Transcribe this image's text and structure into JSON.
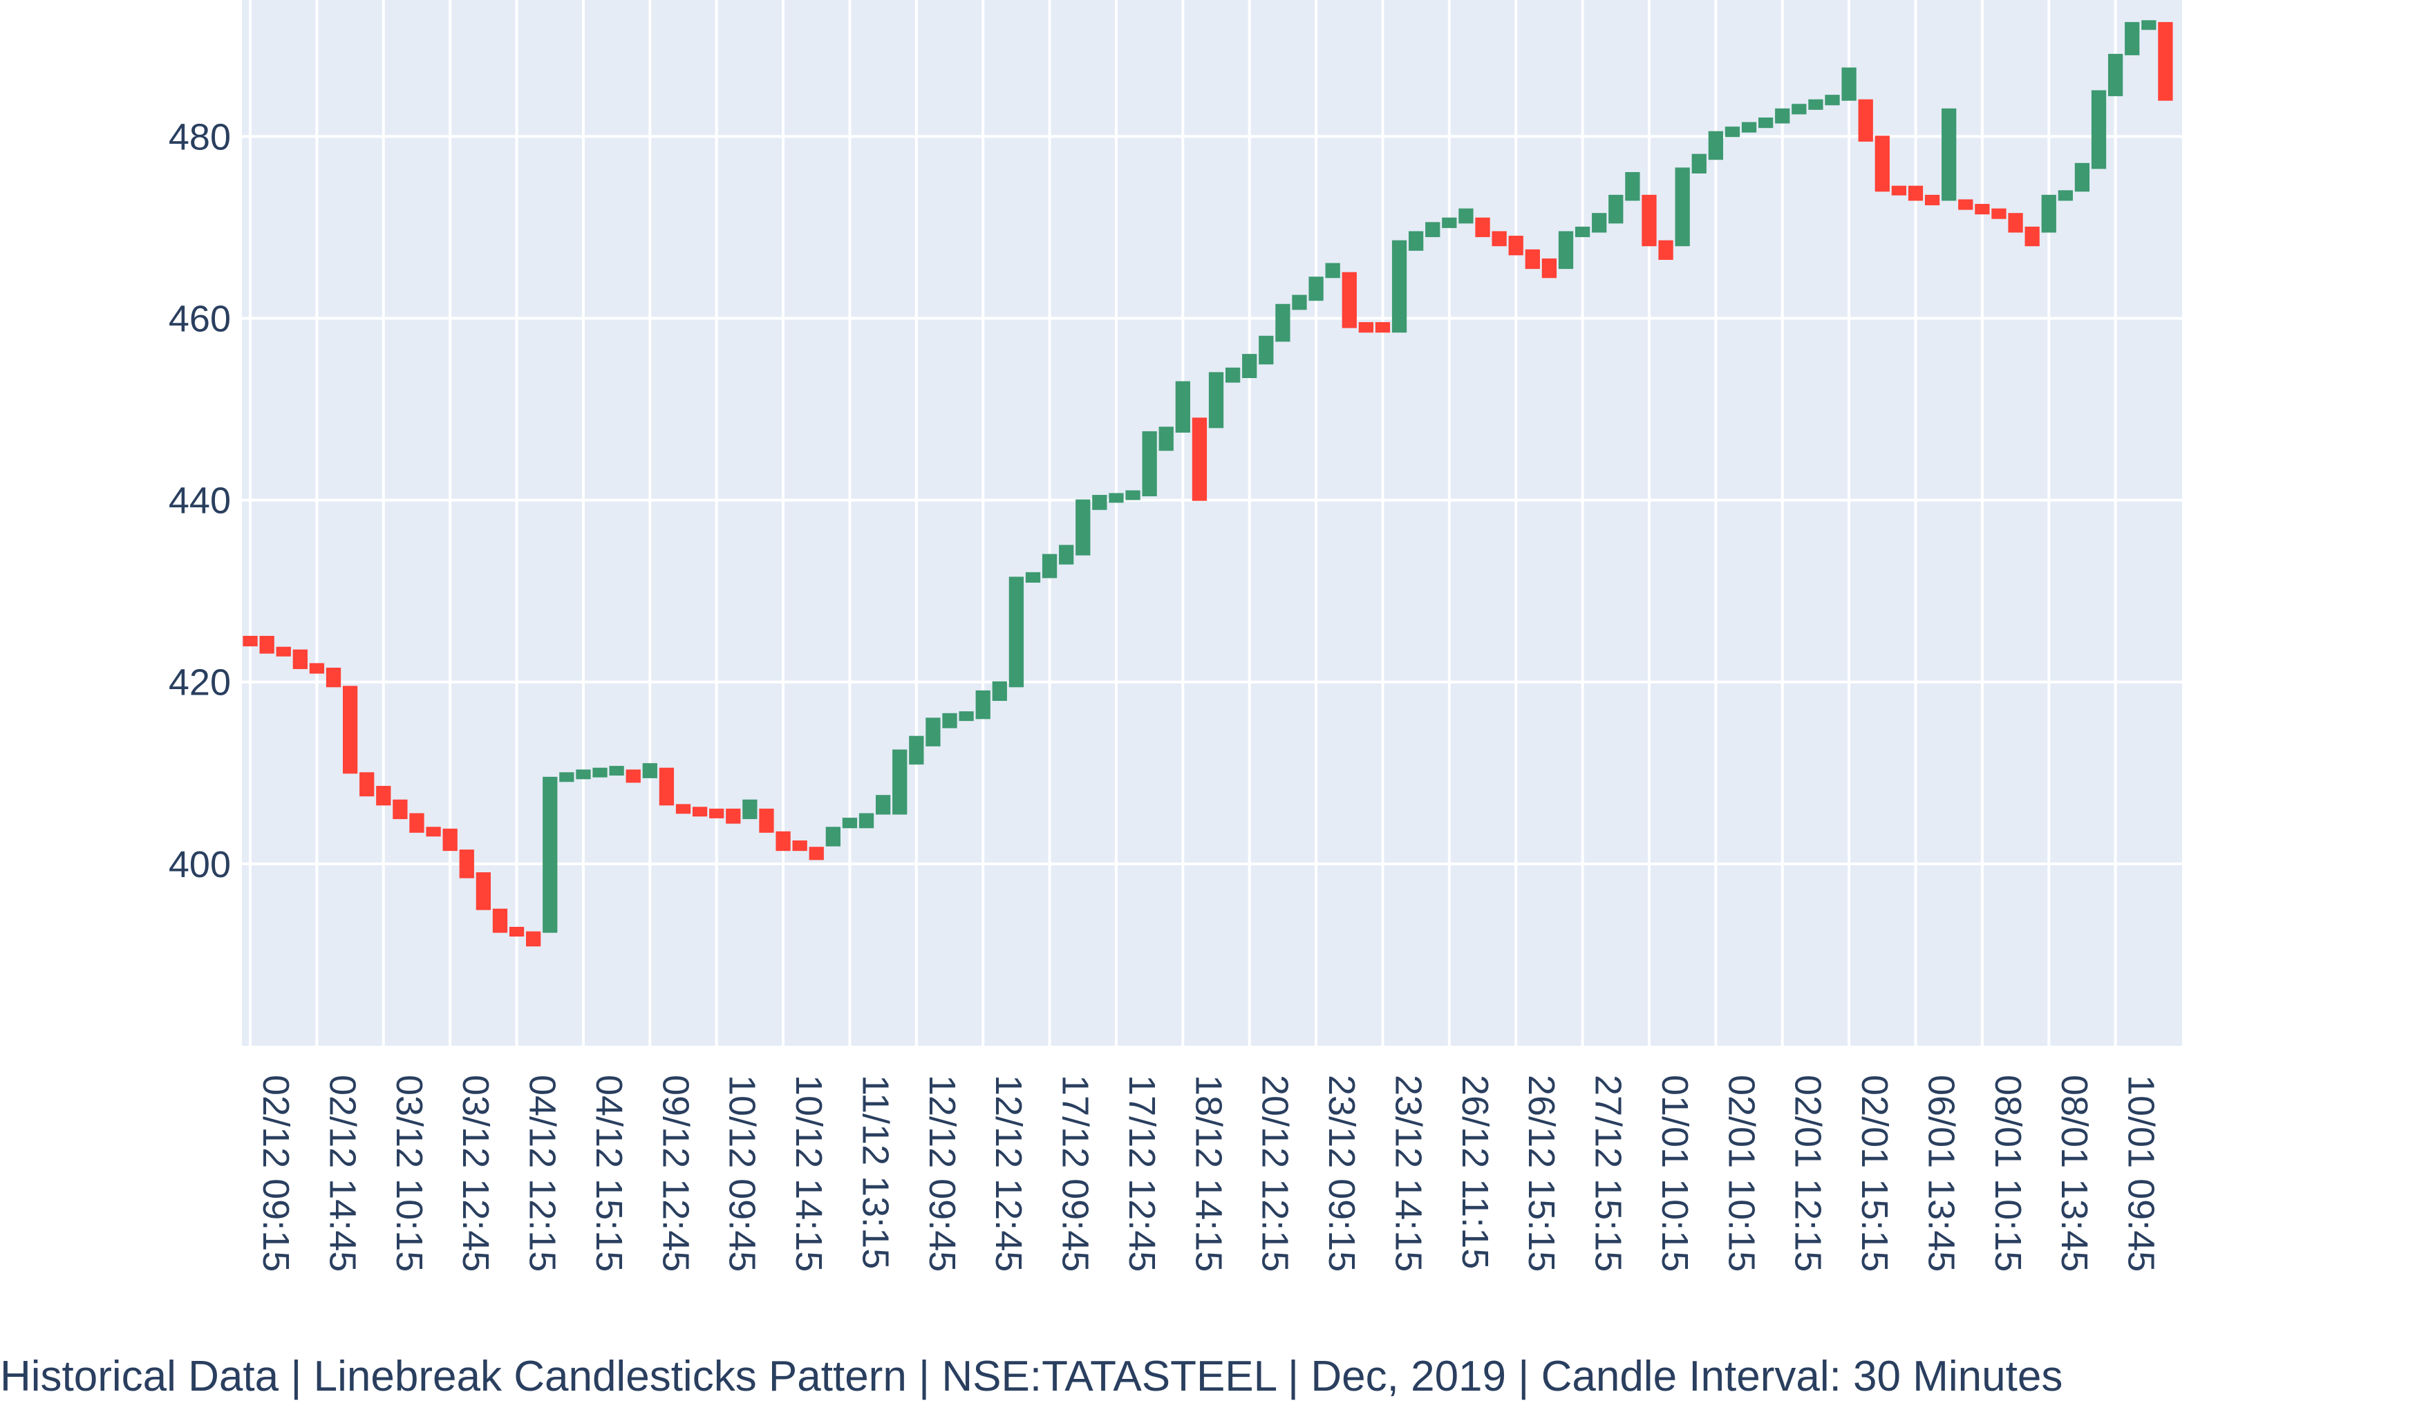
{
  "chart_data": {
    "type": "candlestick",
    "caption": "Historical Data | Linebreak Candlesticks Pattern | NSE:TATASTEEL | Dec, 2019 | Candle Interval: 30 Minutes",
    "ylim": [
      380,
      495
    ],
    "y_ticks": [
      400,
      420,
      440,
      460,
      480
    ],
    "x_tick_labels": [
      "02/12 09:15",
      "02/12 14:45",
      "03/12 10:15",
      "03/12 12:45",
      "04/12 12:15",
      "04/12 15:15",
      "09/12 12:45",
      "10/12 09:45",
      "10/12 14:15",
      "11/12 13:15",
      "12/12 09:45",
      "12/12 12:45",
      "17/12 09:45",
      "17/12 12:45",
      "18/12 14:15",
      "20/12 12:15",
      "23/12 09:15",
      "23/12 14:15",
      "26/12 11:15",
      "26/12 15:15",
      "27/12 15:15",
      "01/01 10:15",
      "02/01 10:15",
      "02/01 12:15",
      "02/01 15:15",
      "06/01 13:45",
      "08/01 10:15",
      "08/01 13:45",
      "10/01 09:45"
    ],
    "grid": true,
    "colors": {
      "up": "#3d9970",
      "down": "#ff4136",
      "plot_bg": "#e5ecf6",
      "grid": "#ffffff",
      "text": "#2a3f5f"
    },
    "candles": [
      {
        "o": 425.0,
        "c": 424.0
      },
      {
        "o": 425.0,
        "c": 423.2
      },
      {
        "o": 423.8,
        "c": 423.0
      },
      {
        "o": 423.5,
        "c": 421.5
      },
      {
        "o": 422.0,
        "c": 421.0
      },
      {
        "o": 421.5,
        "c": 419.5
      },
      {
        "o": 419.5,
        "c": 410.0
      },
      {
        "o": 410.0,
        "c": 407.5
      },
      {
        "o": 408.5,
        "c": 406.5
      },
      {
        "o": 407.0,
        "c": 405.0
      },
      {
        "o": 405.5,
        "c": 403.5
      },
      {
        "o": 404.0,
        "c": 403.5
      },
      {
        "o": 403.8,
        "c": 401.5
      },
      {
        "o": 401.5,
        "c": 398.5
      },
      {
        "o": 399.0,
        "c": 395.0
      },
      {
        "o": 395.0,
        "c": 392.5
      },
      {
        "o": 393.0,
        "c": 392.5
      },
      {
        "o": 392.5,
        "c": 391.0
      },
      {
        "o": 392.5,
        "c": 409.5
      },
      {
        "o": 409.5,
        "c": 410.0
      },
      {
        "o": 410.0,
        "c": 410.3
      },
      {
        "o": 410.2,
        "c": 410.5
      },
      {
        "o": 410.5,
        "c": 410.7
      },
      {
        "o": 410.3,
        "c": 409.0
      },
      {
        "o": 409.5,
        "c": 411.0
      },
      {
        "o": 410.5,
        "c": 406.5
      },
      {
        "o": 406.5,
        "c": 406.0
      },
      {
        "o": 406.2,
        "c": 405.8
      },
      {
        "o": 406.0,
        "c": 405.5
      },
      {
        "o": 406.0,
        "c": 404.5
      },
      {
        "o": 405.0,
        "c": 407.0
      },
      {
        "o": 406.0,
        "c": 403.5
      },
      {
        "o": 403.5,
        "c": 401.5
      },
      {
        "o": 402.5,
        "c": 401.5
      },
      {
        "o": 401.8,
        "c": 400.5
      },
      {
        "o": 402.0,
        "c": 404.0
      },
      {
        "o": 404.0,
        "c": 405.0
      },
      {
        "o": 404.0,
        "c": 405.5
      },
      {
        "o": 405.5,
        "c": 407.5
      },
      {
        "o": 405.5,
        "c": 412.5
      },
      {
        "o": 411.0,
        "c": 414.0
      },
      {
        "o": 413.0,
        "c": 416.0
      },
      {
        "o": 415.0,
        "c": 416.5
      },
      {
        "o": 416.0,
        "c": 416.7
      },
      {
        "o": 416.0,
        "c": 419.0
      },
      {
        "o": 418.0,
        "c": 420.0
      },
      {
        "o": 419.5,
        "c": 431.5
      },
      {
        "o": 431.0,
        "c": 432.0
      },
      {
        "o": 431.5,
        "c": 434.0
      },
      {
        "o": 433.0,
        "c": 435.0
      },
      {
        "o": 434.0,
        "c": 440.0
      },
      {
        "o": 439.0,
        "c": 440.5
      },
      {
        "o": 440.0,
        "c": 440.7
      },
      {
        "o": 440.2,
        "c": 441.0
      },
      {
        "o": 440.5,
        "c": 447.5
      },
      {
        "o": 445.5,
        "c": 448.0
      },
      {
        "o": 447.5,
        "c": 453.0
      },
      {
        "o": 449.0,
        "c": 440.0
      },
      {
        "o": 448.0,
        "c": 454.0
      },
      {
        "o": 453.0,
        "c": 454.5
      },
      {
        "o": 453.5,
        "c": 456.0
      },
      {
        "o": 455.0,
        "c": 458.0
      },
      {
        "o": 457.5,
        "c": 461.5
      },
      {
        "o": 461.0,
        "c": 462.5
      },
      {
        "o": 462.0,
        "c": 464.5
      },
      {
        "o": 464.5,
        "c": 466.0
      },
      {
        "o": 465.0,
        "c": 459.0
      },
      {
        "o": 459.5,
        "c": 458.5
      },
      {
        "o": 459.5,
        "c": 458.5
      },
      {
        "o": 458.5,
        "c": 468.5
      },
      {
        "o": 467.5,
        "c": 469.5
      },
      {
        "o": 469.0,
        "c": 470.5
      },
      {
        "o": 470.0,
        "c": 471.0
      },
      {
        "o": 470.5,
        "c": 472.0
      },
      {
        "o": 471.0,
        "c": 469.0
      },
      {
        "o": 469.5,
        "c": 468.0
      },
      {
        "o": 469.0,
        "c": 467.0
      },
      {
        "o": 467.5,
        "c": 465.5
      },
      {
        "o": 466.5,
        "c": 464.5
      },
      {
        "o": 465.5,
        "c": 469.5
      },
      {
        "o": 469.0,
        "c": 470.0
      },
      {
        "o": 469.5,
        "c": 471.5
      },
      {
        "o": 470.5,
        "c": 473.5
      },
      {
        "o": 473.0,
        "c": 476.0
      },
      {
        "o": 473.5,
        "c": 468.0
      },
      {
        "o": 468.5,
        "c": 466.5
      },
      {
        "o": 468.0,
        "c": 476.5
      },
      {
        "o": 476.0,
        "c": 478.0
      },
      {
        "o": 477.5,
        "c": 480.5
      },
      {
        "o": 480.0,
        "c": 481.0
      },
      {
        "o": 480.5,
        "c": 481.5
      },
      {
        "o": 481.0,
        "c": 482.0
      },
      {
        "o": 481.5,
        "c": 483.0
      },
      {
        "o": 482.5,
        "c": 483.5
      },
      {
        "o": 483.0,
        "c": 484.0
      },
      {
        "o": 483.5,
        "c": 484.5
      },
      {
        "o": 484.0,
        "c": 487.5
      },
      {
        "o": 484.0,
        "c": 479.5
      },
      {
        "o": 480.0,
        "c": 474.0
      },
      {
        "o": 474.5,
        "c": 474.0
      },
      {
        "o": 474.5,
        "c": 473.0
      },
      {
        "o": 473.5,
        "c": 472.5
      },
      {
        "o": 473.0,
        "c": 483.0
      },
      {
        "o": 473.0,
        "c": 472.0
      },
      {
        "o": 472.5,
        "c": 471.5
      },
      {
        "o": 472.0,
        "c": 471.0
      },
      {
        "o": 471.5,
        "c": 469.5
      },
      {
        "o": 470.0,
        "c": 468.0
      },
      {
        "o": 469.5,
        "c": 473.5
      },
      {
        "o": 473.0,
        "c": 474.0
      },
      {
        "o": 474.0,
        "c": 477.0
      },
      {
        "o": 476.5,
        "c": 485.0
      },
      {
        "o": 484.5,
        "c": 489.0
      },
      {
        "o": 489.0,
        "c": 492.5
      },
      {
        "o": 492.5,
        "c": 492.7
      },
      {
        "o": 492.5,
        "c": 484.0
      }
    ]
  }
}
